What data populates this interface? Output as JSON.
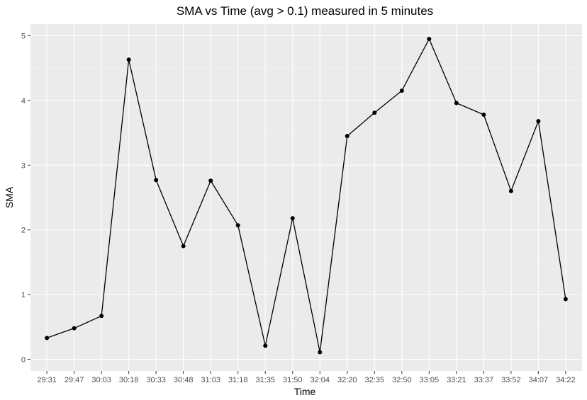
{
  "chart_data": {
    "type": "line",
    "title": "SMA vs Time (avg > 0.1) measured in 5 minutes",
    "xlabel": "Time",
    "ylabel": "SMA",
    "categories": [
      "29:31",
      "29:47",
      "30:03",
      "30:18",
      "30:33",
      "30:48",
      "31:03",
      "31:18",
      "31:35",
      "31:50",
      "32:04",
      "32:20",
      "32:35",
      "32:50",
      "33:05",
      "33:21",
      "33:37",
      "33:52",
      "34:07",
      "34:22"
    ],
    "series": [
      {
        "values": [
          0.33,
          0.48,
          0.67,
          4.63,
          2.77,
          1.75,
          2.76,
          2.07,
          0.21,
          2.18,
          0.11,
          3.45,
          3.81,
          4.15,
          4.95,
          3.96,
          3.78,
          2.6,
          3.68,
          0.93
        ]
      }
    ],
    "ylim": [
      -0.18,
      5.18
    ],
    "yticks": [
      0,
      1,
      2,
      3,
      4,
      5
    ],
    "grid": true,
    "legend": "none",
    "colors": {
      "panel_background": "#ebebeb",
      "grid_major": "#ffffff",
      "grid_minor": "#f5f5f5",
      "series_line": "#000000",
      "point": "#000000",
      "tick": "#333333"
    }
  }
}
